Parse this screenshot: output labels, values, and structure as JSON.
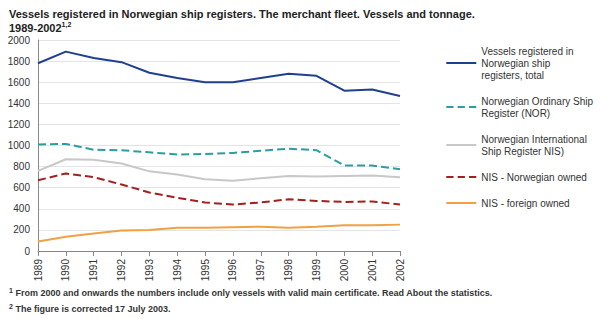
{
  "chart_data": {
    "type": "line",
    "title": "Vessels registered in Norwegian ship registers. The merchant fleet. Vessels and tonnage. 1989-2002",
    "title_superscript": "1,2",
    "categories": [
      "1989",
      "1990",
      "1991",
      "1992",
      "1993",
      "1994",
      "1995",
      "1996",
      "1997",
      "1998",
      "1999",
      "2000",
      "2001",
      "2002"
    ],
    "series": [
      {
        "name": "Vessels registered in Norwegian ship registers, total",
        "color": "#1f3f8f",
        "line_style": "solid",
        "values": [
          1780,
          1890,
          1830,
          1790,
          1690,
          1640,
          1600,
          1600,
          1640,
          1680,
          1660,
          1520,
          1530,
          1470
        ]
      },
      {
        "name": "Norwegian Ordinary Ship Register (NOR)",
        "color": "#2a9fa3",
        "line_style": "dashed",
        "values": [
          1010,
          1015,
          960,
          955,
          935,
          915,
          920,
          930,
          950,
          970,
          955,
          810,
          810,
          775
        ]
      },
      {
        "name": "Norwegian International Ship Register NIS)",
        "color": "#c8c8c8",
        "line_style": "solid",
        "values": [
          760,
          870,
          865,
          830,
          755,
          725,
          680,
          665,
          690,
          710,
          705,
          710,
          715,
          700
        ]
      },
      {
        "name": "NIS - Norwegian owned",
        "color": "#a3201e",
        "line_style": "dashed",
        "values": [
          670,
          735,
          700,
          630,
          555,
          505,
          460,
          440,
          460,
          490,
          475,
          465,
          470,
          440
        ]
      },
      {
        "name": "NIS - foreign owned",
        "color": "#f0a144",
        "line_style": "solid",
        "values": [
          90,
          135,
          165,
          195,
          200,
          220,
          220,
          225,
          230,
          220,
          230,
          245,
          245,
          250
        ]
      }
    ],
    "ylim": [
      0,
      2000
    ],
    "yticks": [
      0,
      200,
      400,
      600,
      800,
      1000,
      1200,
      1400,
      1600,
      1800,
      2000
    ],
    "grid": true,
    "legend": "right",
    "footnotes": [
      {
        "mark": "1",
        "text": "From 2000 and onwards the numbers include only vessels with valid main certificate. Read About the statistics."
      },
      {
        "mark": "2",
        "text": "The figure is corrected 17 July 2003."
      }
    ]
  }
}
